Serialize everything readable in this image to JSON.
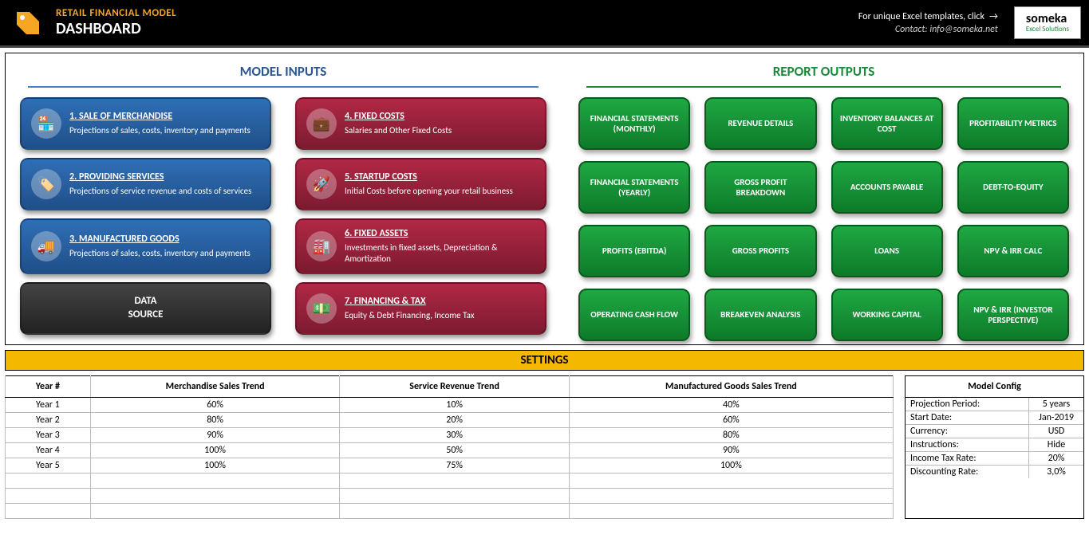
{
  "header": {
    "subtitle": "RETAIL FINANCIAL MODEL",
    "title": "DASHBOARD",
    "link_text": "For unique Excel templates, click",
    "contact": "Contact: info@someka.net",
    "logo_main": "someka",
    "logo_sub": "Excel Solutions"
  },
  "sections": {
    "inputs": "MODEL INPUTS",
    "outputs": "REPORT OUTPUTS",
    "settings": "SETTINGS"
  },
  "input_cards": [
    {
      "title": "1. SALE OF MERCHANDISE",
      "desc": "Projections of sales, costs, inventory and payments",
      "color": "blue",
      "icon": "🏪"
    },
    {
      "title": "4. FIXED COSTS",
      "desc": "Salaries and Other Fixed Costs",
      "color": "red",
      "icon": "💼"
    },
    {
      "title": "2. PROVIDING SERVICES",
      "desc": "Projections of service revenue and costs of services",
      "color": "blue",
      "icon": "🏷️"
    },
    {
      "title": "5. STARTUP COSTS",
      "desc": "Initial Costs before opening your retail business",
      "color": "red",
      "icon": "🚀"
    },
    {
      "title": "3. MANUFACTURED GOODS",
      "desc": "Projections of sales, costs, inventory and payments",
      "color": "blue",
      "icon": "🚚"
    },
    {
      "title": "6. FIXED ASSETS",
      "desc": "Investments in fixed assets, Depreciation & Amortization",
      "color": "red",
      "icon": "🏭"
    },
    {
      "title": "DATA SOURCE",
      "desc": "",
      "color": "dark",
      "icon": ""
    },
    {
      "title": "7. FINANCING & TAX",
      "desc": "Equity & Debt Financing, Income Tax",
      "color": "red",
      "icon": "💵"
    }
  ],
  "output_buttons": [
    "FINANCIAL STATEMENTS (MONTHLY)",
    "REVENUE DETAILS",
    "INVENTORY BALANCES AT COST",
    "PROFITABILITY METRICS",
    "FINANCIAL STATEMENTS (YEARLY)",
    "GROSS PROFIT BREAKDOWN",
    "ACCOUNTS PAYABLE",
    "DEBT-TO-EQUITY",
    "PROFITS (EBITDA)",
    "GROSS PROFITS",
    "LOANS",
    "NPV & IRR CALC",
    "OPERATING CASH FLOW",
    "BREAKEVEN ANALYSIS",
    "WORKING CAPITAL",
    "NPV & IRR (INVESTOR PERSPECTIVE)"
  ],
  "trend_table": {
    "columns": [
      "Year #",
      "Merchandise Sales Trend",
      "Service Revenue Trend",
      "Manufactured Goods Sales Trend"
    ],
    "rows": [
      [
        "Year 1",
        "60%",
        "10%",
        "40%"
      ],
      [
        "Year 2",
        "80%",
        "20%",
        "60%"
      ],
      [
        "Year 3",
        "90%",
        "30%",
        "80%"
      ],
      [
        "Year 4",
        "100%",
        "50%",
        "90%"
      ],
      [
        "Year 5",
        "100%",
        "75%",
        "100%"
      ]
    ],
    "blank_rows": 3
  },
  "config": {
    "title": "Model Config",
    "rows": [
      {
        "label": "Projection Period:",
        "value": "5 years"
      },
      {
        "label": "Start Date:",
        "value": "Jan-2019"
      },
      {
        "label": "Currency:",
        "value": "USD"
      },
      {
        "label": "Instructions:",
        "value": "Hide"
      },
      {
        "label": "Income Tax Rate:",
        "value": "20%"
      },
      {
        "label": "Discounting Rate:",
        "value": "3,0%"
      }
    ]
  },
  "colors": {
    "accent_orange": "#f5a623",
    "blue": "#2a5693",
    "green": "#1a8a3a",
    "red": "#9a1f36",
    "settings_bar": "#f5b800"
  }
}
